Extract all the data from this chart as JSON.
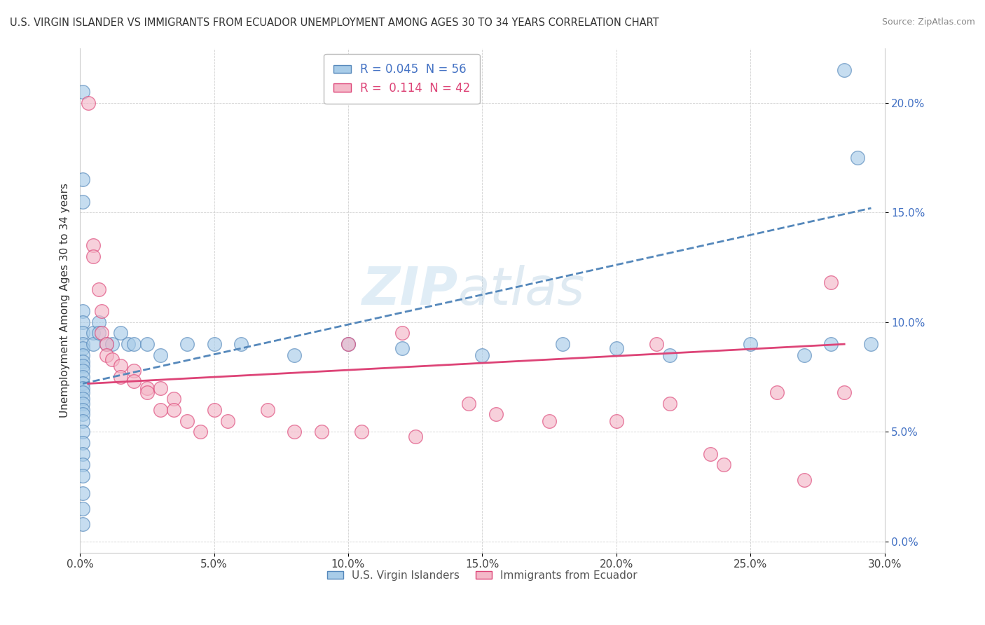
{
  "title": "U.S. VIRGIN ISLANDER VS IMMIGRANTS FROM ECUADOR UNEMPLOYMENT AMONG AGES 30 TO 34 YEARS CORRELATION CHART",
  "source": "Source: ZipAtlas.com",
  "ylabel": "Unemployment Among Ages 30 to 34 years",
  "legend_label1": "U.S. Virgin Islanders",
  "legend_label2": "Immigrants from Ecuador",
  "R1": 0.045,
  "N1": 56,
  "R2": 0.114,
  "N2": 42,
  "xlim": [
    0.0,
    0.3
  ],
  "ylim": [
    -0.005,
    0.225
  ],
  "xticks": [
    0.0,
    0.05,
    0.1,
    0.15,
    0.2,
    0.25,
    0.3
  ],
  "yticks": [
    0.0,
    0.05,
    0.1,
    0.15,
    0.2
  ],
  "color1": "#a8cce8",
  "color2": "#f4b8c8",
  "trendline1_color": "#5588bb",
  "trendline2_color": "#dd4477",
  "blue_scatter": [
    [
      0.001,
      0.205
    ],
    [
      0.001,
      0.165
    ],
    [
      0.001,
      0.155
    ],
    [
      0.001,
      0.105
    ],
    [
      0.001,
      0.1
    ],
    [
      0.001,
      0.095
    ],
    [
      0.001,
      0.09
    ],
    [
      0.001,
      0.088
    ],
    [
      0.001,
      0.085
    ],
    [
      0.001,
      0.082
    ],
    [
      0.001,
      0.08
    ],
    [
      0.001,
      0.078
    ],
    [
      0.001,
      0.075
    ],
    [
      0.001,
      0.072
    ],
    [
      0.001,
      0.07
    ],
    [
      0.001,
      0.068
    ],
    [
      0.001,
      0.065
    ],
    [
      0.001,
      0.063
    ],
    [
      0.001,
      0.06
    ],
    [
      0.001,
      0.058
    ],
    [
      0.001,
      0.055
    ],
    [
      0.001,
      0.05
    ],
    [
      0.001,
      0.045
    ],
    [
      0.001,
      0.04
    ],
    [
      0.001,
      0.035
    ],
    [
      0.001,
      0.03
    ],
    [
      0.001,
      0.022
    ],
    [
      0.001,
      0.015
    ],
    [
      0.001,
      0.008
    ],
    [
      0.005,
      0.095
    ],
    [
      0.005,
      0.09
    ],
    [
      0.007,
      0.1
    ],
    [
      0.007,
      0.095
    ],
    [
      0.01,
      0.09
    ],
    [
      0.012,
      0.09
    ],
    [
      0.015,
      0.095
    ],
    [
      0.018,
      0.09
    ],
    [
      0.02,
      0.09
    ],
    [
      0.025,
      0.09
    ],
    [
      0.03,
      0.085
    ],
    [
      0.04,
      0.09
    ],
    [
      0.05,
      0.09
    ],
    [
      0.06,
      0.09
    ],
    [
      0.08,
      0.085
    ],
    [
      0.1,
      0.09
    ],
    [
      0.12,
      0.088
    ],
    [
      0.15,
      0.085
    ],
    [
      0.18,
      0.09
    ],
    [
      0.2,
      0.088
    ],
    [
      0.22,
      0.085
    ],
    [
      0.25,
      0.09
    ],
    [
      0.27,
      0.085
    ],
    [
      0.28,
      0.09
    ],
    [
      0.285,
      0.215
    ],
    [
      0.29,
      0.175
    ],
    [
      0.295,
      0.09
    ]
  ],
  "pink_scatter": [
    [
      0.003,
      0.2
    ],
    [
      0.005,
      0.135
    ],
    [
      0.005,
      0.13
    ],
    [
      0.007,
      0.115
    ],
    [
      0.008,
      0.105
    ],
    [
      0.008,
      0.095
    ],
    [
      0.01,
      0.09
    ],
    [
      0.01,
      0.085
    ],
    [
      0.012,
      0.083
    ],
    [
      0.015,
      0.08
    ],
    [
      0.015,
      0.075
    ],
    [
      0.02,
      0.078
    ],
    [
      0.02,
      0.073
    ],
    [
      0.025,
      0.07
    ],
    [
      0.025,
      0.068
    ],
    [
      0.03,
      0.07
    ],
    [
      0.03,
      0.06
    ],
    [
      0.035,
      0.065
    ],
    [
      0.035,
      0.06
    ],
    [
      0.04,
      0.055
    ],
    [
      0.045,
      0.05
    ],
    [
      0.05,
      0.06
    ],
    [
      0.055,
      0.055
    ],
    [
      0.07,
      0.06
    ],
    [
      0.08,
      0.05
    ],
    [
      0.09,
      0.05
    ],
    [
      0.1,
      0.09
    ],
    [
      0.105,
      0.05
    ],
    [
      0.12,
      0.095
    ],
    [
      0.125,
      0.048
    ],
    [
      0.145,
      0.063
    ],
    [
      0.155,
      0.058
    ],
    [
      0.175,
      0.055
    ],
    [
      0.2,
      0.055
    ],
    [
      0.215,
      0.09
    ],
    [
      0.22,
      0.063
    ],
    [
      0.235,
      0.04
    ],
    [
      0.24,
      0.035
    ],
    [
      0.26,
      0.068
    ],
    [
      0.27,
      0.028
    ],
    [
      0.28,
      0.118
    ],
    [
      0.285,
      0.068
    ]
  ],
  "trendline1_x": [
    0.001,
    0.295
  ],
  "trendline1_y": [
    0.072,
    0.152
  ],
  "trendline2_x": [
    0.003,
    0.285
  ],
  "trendline2_y": [
    0.072,
    0.09
  ]
}
